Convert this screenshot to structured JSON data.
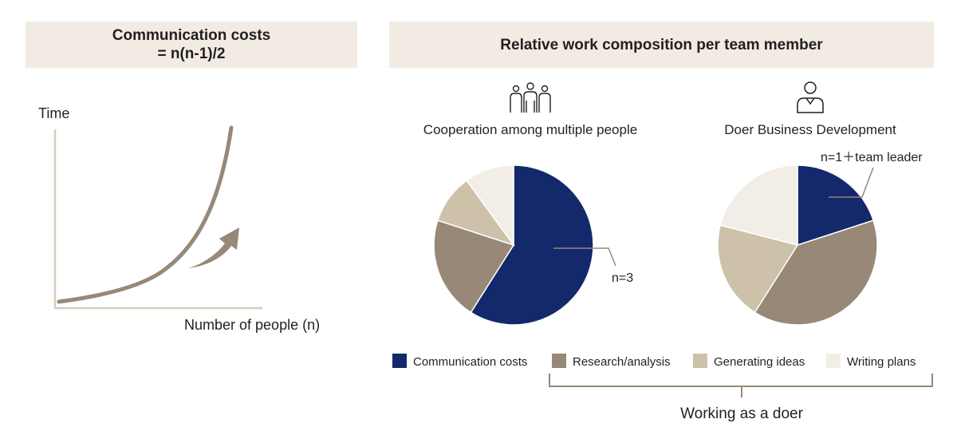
{
  "left_panel": {
    "header_line1": "Communication costs",
    "header_line2": "= n(n-1)/2",
    "ylabel": "Time",
    "xlabel": "Number of people (n)"
  },
  "right_panel": {
    "header": "Relative work composition per team member",
    "groups": [
      {
        "icon": "group-people-icon",
        "title": "Cooperation among multiple people"
      },
      {
        "icon": "person-icon",
        "title": "Doer Business Development"
      }
    ]
  },
  "colors": {
    "communication": "#13296b",
    "research": "#978878",
    "ideas": "#cdc1aa",
    "writing": "#f2ede6",
    "axis": "#d6cbbd",
    "curve": "#978878",
    "header_bg": "#f1ebe4",
    "text": "#231f20"
  },
  "chart_data": [
    {
      "type": "line",
      "title": "Communication costs = n(n-1)/2",
      "xlabel": "Number of people (n)",
      "ylabel": "Time",
      "note": "illustrative curve, no numeric ticks"
    },
    {
      "type": "pie",
      "title": "Cooperation among multiple people",
      "annotation": "n=3",
      "categories": [
        "Communication costs",
        "Research/analysis",
        "Generating ideas",
        "Writing plans"
      ],
      "values": [
        59,
        21,
        10,
        10
      ]
    },
    {
      "type": "pie",
      "title": "Doer Business Development",
      "annotation": "n=1＋team leader",
      "categories": [
        "Communication costs",
        "Research/analysis",
        "Generating ideas",
        "Writing plans"
      ],
      "values": [
        20,
        39,
        20,
        21
      ]
    }
  ],
  "legend": [
    {
      "label": "Communication costs",
      "color": "#13296b"
    },
    {
      "label": "Research/analysis",
      "color": "#978878"
    },
    {
      "label": "Generating ideas",
      "color": "#cdc1aa"
    },
    {
      "label": "Writing plans",
      "color": "#f2ede6"
    }
  ],
  "bracket_label": "Working as a doer"
}
